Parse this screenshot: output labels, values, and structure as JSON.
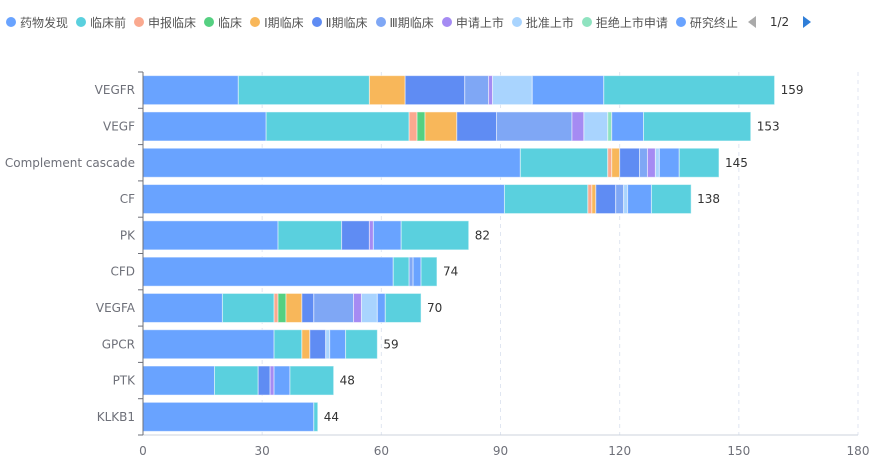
{
  "legend": {
    "items": [
      {
        "label": "药物发现",
        "color": "#69a3ff"
      },
      {
        "label": "临床前",
        "color": "#5ad0de"
      },
      {
        "label": "申报临床",
        "color": "#faa98f"
      },
      {
        "label": "临床",
        "color": "#55d081"
      },
      {
        "label": "Ⅰ期临床",
        "color": "#f8b75a"
      },
      {
        "label": "Ⅱ期临床",
        "color": "#5f8cf3"
      },
      {
        "label": "Ⅲ期临床",
        "color": "#7fa7f5"
      },
      {
        "label": "申请上市",
        "color": "#a58bf3"
      },
      {
        "label": "批准上市",
        "color": "#a9d4fe"
      },
      {
        "label": "拒绝上市申请",
        "color": "#8fe3c0"
      },
      {
        "label": "研究终止",
        "color": "#69a3ff"
      }
    ],
    "page": "1/2",
    "prev_icon": "triangle-left-icon",
    "next_icon": "triangle-right-icon"
  },
  "chart_data": {
    "type": "bar",
    "orientation": "horizontal",
    "stacked": true,
    "categories": [
      "VEGFR",
      "VEGF",
      "Complement cascade",
      "CF",
      "PK",
      "CFD",
      "VEGFA",
      "GPCR",
      "PTK",
      "KLKB1"
    ],
    "totals": [
      159,
      153,
      145,
      138,
      82,
      74,
      70,
      59,
      48,
      44
    ],
    "series": [
      {
        "name": "药物发现",
        "color": "#69a3ff",
        "values": [
          24,
          31,
          95,
          91,
          34,
          63,
          20,
          33,
          18,
          43
        ]
      },
      {
        "name": "临床前",
        "color": "#5ad0de",
        "values": [
          33,
          36,
          22,
          21,
          16,
          4,
          13,
          7,
          11,
          1
        ]
      },
      {
        "name": "申报临床",
        "color": "#faa98f",
        "values": [
          0,
          2,
          1,
          1,
          0,
          0,
          1,
          0,
          0,
          0
        ]
      },
      {
        "name": "临床",
        "color": "#55d081",
        "values": [
          0,
          2,
          0,
          0,
          0,
          0,
          2,
          0,
          0,
          0
        ]
      },
      {
        "name": "Ⅰ期临床",
        "color": "#f8b75a",
        "values": [
          9,
          8,
          2,
          1,
          0,
          0,
          4,
          2,
          0,
          0
        ]
      },
      {
        "name": "Ⅱ期临床",
        "color": "#5f8cf3",
        "values": [
          15,
          10,
          5,
          5,
          7,
          0,
          3,
          4,
          3,
          0
        ]
      },
      {
        "name": "Ⅲ期临床",
        "color": "#7fa7f5",
        "values": [
          6,
          19,
          2,
          2,
          0,
          1,
          10,
          0,
          0,
          0
        ]
      },
      {
        "name": "申请上市",
        "color": "#a58bf3",
        "values": [
          1,
          3,
          2,
          0,
          1,
          0,
          2,
          0,
          1,
          0
        ]
      },
      {
        "name": "批准上市",
        "color": "#a9d4fe",
        "values": [
          10,
          6,
          1,
          1,
          0,
          0,
          4,
          1,
          0,
          0
        ]
      },
      {
        "name": "拒绝上市申请",
        "color": "#8fe3c0",
        "values": [
          0,
          1,
          0,
          0,
          0,
          0,
          0,
          0,
          0,
          0
        ]
      },
      {
        "name": "研究终止",
        "color": "#69a3ff",
        "values": [
          18,
          8,
          5,
          6,
          7,
          2,
          2,
          4,
          4,
          0
        ]
      },
      {
        "name": "",
        "color": "#5ad0de",
        "values": [
          43,
          27,
          10,
          10,
          17,
          4,
          9,
          8,
          11,
          0
        ]
      }
    ],
    "xlim": [
      0,
      180
    ],
    "xticks": [
      "0",
      "30",
      "60",
      "90",
      "120",
      "150",
      "180"
    ],
    "grid": "vertical dashed",
    "legend_position": "top"
  }
}
